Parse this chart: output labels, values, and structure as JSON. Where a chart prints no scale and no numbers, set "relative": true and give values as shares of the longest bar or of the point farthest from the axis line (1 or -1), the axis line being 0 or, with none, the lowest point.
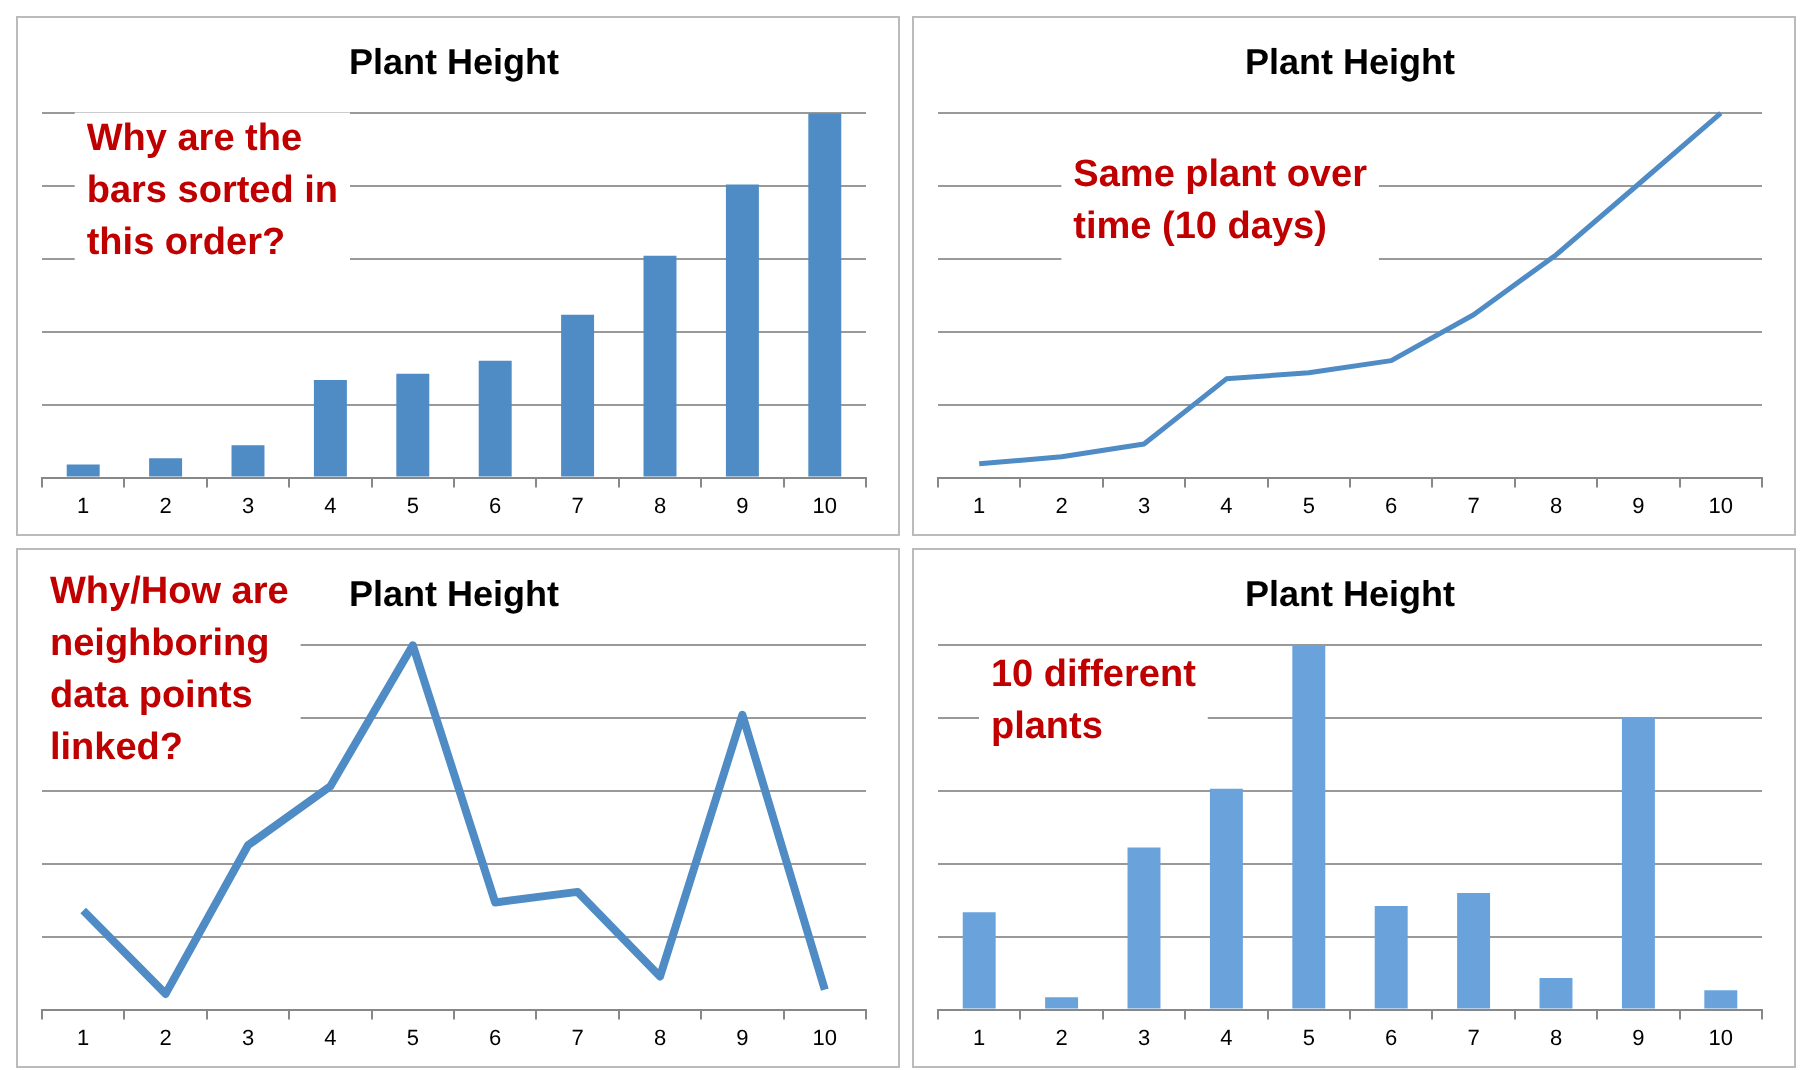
{
  "chart_data": [
    {
      "type": "bar",
      "title": "Plant Height",
      "categories": [
        "1",
        "2",
        "3",
        "4",
        "5",
        "6",
        "7",
        "8",
        "9",
        "10"
      ],
      "relative": true,
      "grid": "y",
      "color": "#4f8bc4",
      "values": [
        0.036,
        0.053,
        0.089,
        0.268,
        0.285,
        0.321,
        0.447,
        0.609,
        0.804,
        1
      ],
      "annotations": [
        "Why are the bars sorted in this order?"
      ]
    },
    {
      "type": "line",
      "title": "Plant Height",
      "categories": [
        "1",
        "2",
        "3",
        "4",
        "5",
        "6",
        "7",
        "8",
        "9",
        "10"
      ],
      "relative": true,
      "grid": "y",
      "color": "#4f8bc4",
      "marker": "none",
      "values": [
        0.038,
        0.057,
        0.092,
        0.271,
        0.288,
        0.321,
        0.447,
        0.611,
        0.805,
        1
      ],
      "annotations": [
        "Same plant over time (10 days)"
      ]
    },
    {
      "type": "line",
      "title": "Plant Height",
      "categories": [
        "1",
        "2",
        "3",
        "4",
        "5",
        "6",
        "7",
        "8",
        "9",
        "10"
      ],
      "relative": true,
      "grid": "y",
      "color": "#4f8bc4",
      "marker": "none",
      "values": [
        0.272,
        0.043,
        0.451,
        0.613,
        1,
        0.294,
        0.323,
        0.091,
        0.809,
        0.055
      ],
      "annotations": [
        "Why/How are neighboring data points linked?"
      ]
    },
    {
      "type": "bar",
      "title": "Plant Height",
      "categories": [
        "1",
        "2",
        "3",
        "4",
        "5",
        "6",
        "7",
        "8",
        "9",
        "10"
      ],
      "relative": true,
      "grid": "y",
      "color": "#6aa3dc",
      "values": [
        0.267,
        0.034,
        0.445,
        0.606,
        1,
        0.284,
        0.32,
        0.087,
        0.803,
        0.053
      ],
      "annotations": [
        "10 different plants"
      ]
    }
  ]
}
